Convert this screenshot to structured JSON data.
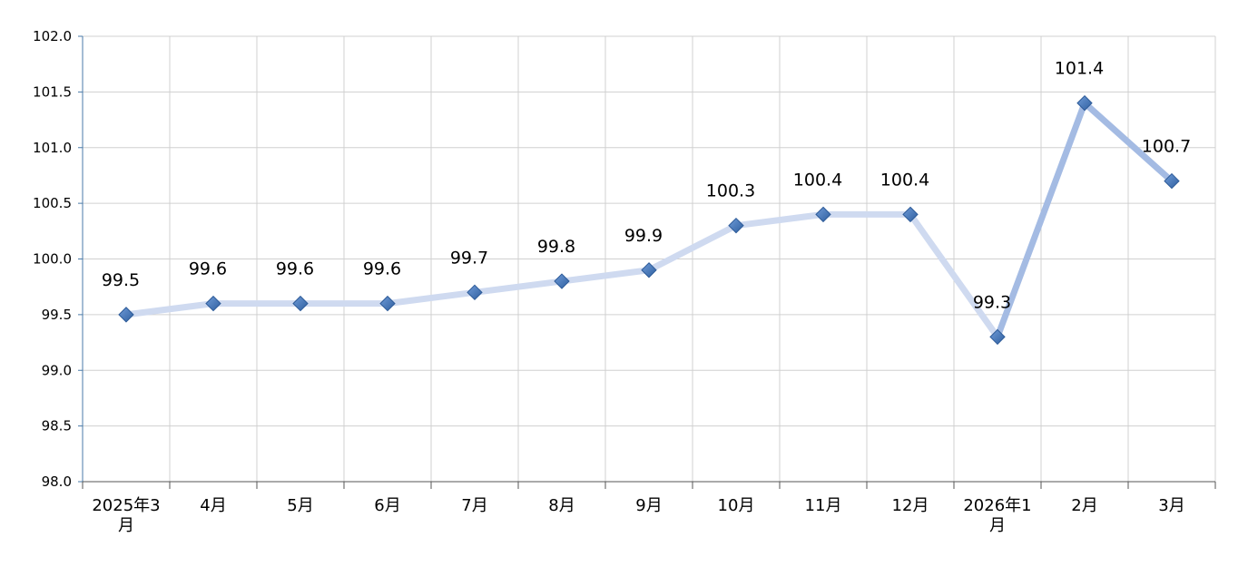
{
  "chart_data": {
    "type": "line",
    "categories": [
      [
        "2025年3",
        "月"
      ],
      [
        "4月"
      ],
      [
        "5月"
      ],
      [
        "6月"
      ],
      [
        "7月"
      ],
      [
        "8月"
      ],
      [
        "9月"
      ],
      [
        "10月"
      ],
      [
        "11月"
      ],
      [
        "12月"
      ],
      [
        "2026年1",
        "月"
      ],
      [
        "2月"
      ],
      [
        "3月"
      ]
    ],
    "values": [
      99.5,
      99.6,
      99.6,
      99.6,
      99.7,
      99.8,
      99.9,
      100.3,
      100.4,
      100.4,
      99.3,
      101.4,
      100.7
    ],
    "data_labels": [
      "99.5",
      "99.6",
      "99.6",
      "99.6",
      "99.7",
      "99.8",
      "99.9",
      "100.3",
      "100.4",
      "100.4",
      "99.3",
      "101.4",
      "100.7"
    ],
    "y_ticks": [
      "98.0",
      "98.5",
      "99.0",
      "99.5",
      "100.0",
      "100.5",
      "101.0",
      "101.5",
      "102.0"
    ],
    "ylim": [
      98.0,
      102.0
    ],
    "grid": true,
    "line_color_light": "#cfdaf0",
    "line_color_dark": "#a4bbe3",
    "marker_color": "#3a6fb8",
    "grid_color": "#d0d0d0",
    "axis_color": "#4a7aa8"
  }
}
